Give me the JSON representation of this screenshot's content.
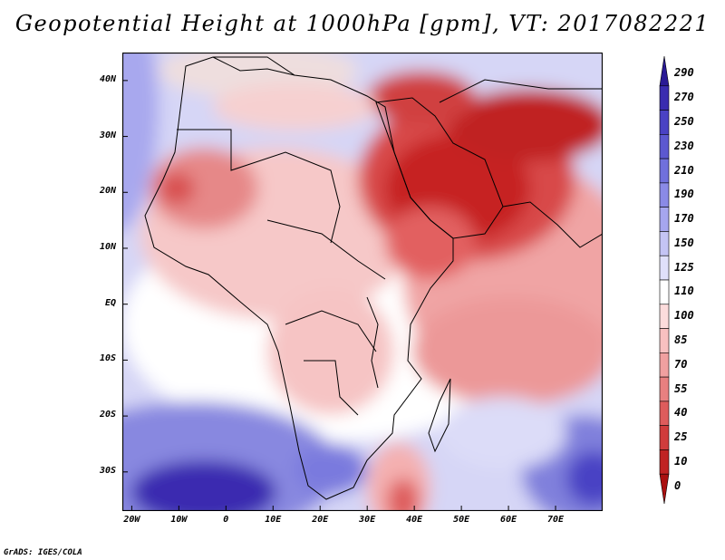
{
  "title": "Geopotential Height at 1000hPa [gpm], VT: 2017082221",
  "credit": "GrADS: IGES/COLA",
  "lat_ticks": [
    "40N",
    "30N",
    "20N",
    "10N",
    "EQ",
    "10S",
    "20S",
    "30S"
  ],
  "lon_ticks": [
    "20W",
    "10W",
    "0",
    "10E",
    "20E",
    "30E",
    "40E",
    "50E",
    "60E",
    "70E"
  ],
  "extent": {
    "lon_min": -22,
    "lon_max": 80,
    "lat_min": -37,
    "lat_max": 45
  },
  "colorbar": {
    "labels": [
      "290",
      "270",
      "250",
      "230",
      "210",
      "190",
      "170",
      "150",
      "125",
      "110",
      "100",
      "85",
      "70",
      "55",
      "40",
      "25",
      "10",
      "0"
    ],
    "colors": [
      "#2a1a95",
      "#3a2cb0",
      "#4a42c4",
      "#5c58d0",
      "#7070dc",
      "#8a8ae6",
      "#a6a6ee",
      "#c4c4f4",
      "#e0e0fa",
      "#ffffff",
      "#fcdcdc",
      "#f8c0c0",
      "#f0a0a0",
      "#e88080",
      "#de5c5c",
      "#d03c3c",
      "#c02222",
      "#aa1010"
    ]
  }
}
